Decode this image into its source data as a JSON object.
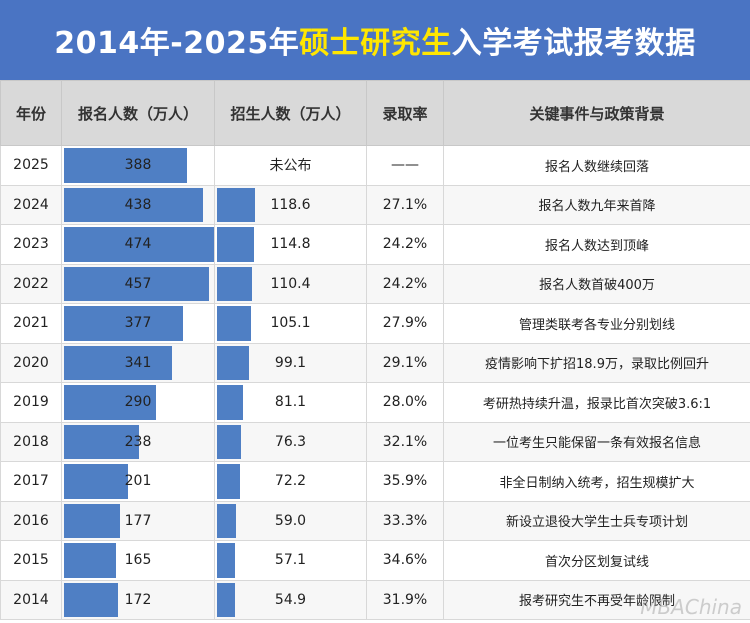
{
  "title": {
    "part1": "2014年-2025年",
    "part2": "硕士研究生",
    "part3": "入学考试报考数据"
  },
  "headers": [
    "年份",
    "报名人数（万人）",
    "招生人数（万人）",
    "录取率",
    "关键事件与政策背景"
  ],
  "colors": {
    "title_bg": "#4a74c3",
    "highlight": "#ffe600",
    "bar": "#4f7fc4",
    "header_bg": "#d9d9d9"
  },
  "watermark": "MBAChina",
  "chart_data": {
    "type": "table",
    "bar_max": 474,
    "rows": [
      {
        "year": "2025",
        "applicants": 388,
        "enrolled": null,
        "enrolled_text": "未公布",
        "rate": "——",
        "event": "报名人数继续回落"
      },
      {
        "year": "2024",
        "applicants": 438,
        "enrolled": 118.6,
        "enrolled_text": "118.6",
        "rate": "27.1%",
        "event": "报名人数九年来首降"
      },
      {
        "year": "2023",
        "applicants": 474,
        "enrolled": 114.8,
        "enrolled_text": "114.8",
        "rate": "24.2%",
        "event": "报名人数达到顶峰"
      },
      {
        "year": "2022",
        "applicants": 457,
        "enrolled": 110.4,
        "enrolled_text": "110.4",
        "rate": "24.2%",
        "event": "报名人数首破400万"
      },
      {
        "year": "2021",
        "applicants": 377,
        "enrolled": 105.1,
        "enrolled_text": "105.1",
        "rate": "27.9%",
        "event": "管理类联考各专业分别划线"
      },
      {
        "year": "2020",
        "applicants": 341,
        "enrolled": 99.1,
        "enrolled_text": "99.1",
        "rate": "29.1%",
        "event": "疫情影响下扩招18.9万，录取比例回升"
      },
      {
        "year": "2019",
        "applicants": 290,
        "enrolled": 81.1,
        "enrolled_text": "81.1",
        "rate": "28.0%",
        "event": "考研热持续升温，报录比首次突破3.6:1"
      },
      {
        "year": "2018",
        "applicants": 238,
        "enrolled": 76.3,
        "enrolled_text": "76.3",
        "rate": "32.1%",
        "event": "一位考生只能保留一条有效报名信息"
      },
      {
        "year": "2017",
        "applicants": 201,
        "enrolled": 72.2,
        "enrolled_text": "72.2",
        "rate": "35.9%",
        "event": "非全日制纳入统考，招生规模扩大"
      },
      {
        "year": "2016",
        "applicants": 177,
        "enrolled": 59.0,
        "enrolled_text": "59.0",
        "rate": "33.3%",
        "event": "新设立退役大学生士兵专项计划"
      },
      {
        "year": "2015",
        "applicants": 165,
        "enrolled": 57.1,
        "enrolled_text": "57.1",
        "rate": "34.6%",
        "event": "首次分区划复试线"
      },
      {
        "year": "2014",
        "applicants": 172,
        "enrolled": 54.9,
        "enrolled_text": "54.9",
        "rate": "31.9%",
        "event": "报考研究生不再受年龄限制"
      }
    ]
  }
}
